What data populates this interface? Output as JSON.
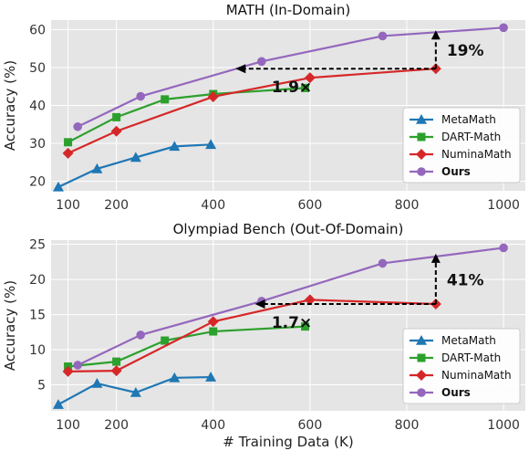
{
  "colors": {
    "MetaMath": "#1f77b4",
    "DART-Math": "#2ca02c",
    "NuminaMath": "#d62728",
    "Ours": "#9467bd"
  },
  "chart_data": [
    {
      "type": "line",
      "title": "MATH (In-Domain)",
      "xlabel": "",
      "ylabel": "Accuracy (%)",
      "xlim": [
        65,
        1045
      ],
      "ylim": [
        17.5,
        62.5
      ],
      "xticks": [
        100,
        200,
        400,
        600,
        800,
        1000
      ],
      "yticks": [
        20,
        30,
        40,
        50,
        60
      ],
      "grid": true,
      "legend_position": "lower-right",
      "series": [
        {
          "name": "MetaMath",
          "marker": "triangle",
          "x": [
            80,
            160,
            240,
            320,
            395
          ],
          "y": [
            18.5,
            23.3,
            26.3,
            29.2,
            29.7
          ]
        },
        {
          "name": "DART-Math",
          "marker": "square",
          "x": [
            100,
            200,
            300,
            400,
            590
          ],
          "y": [
            30.3,
            36.9,
            41.6,
            43.0,
            44.6
          ]
        },
        {
          "name": "NuminaMath",
          "marker": "diamond",
          "x": [
            100,
            200,
            400,
            600,
            860
          ],
          "y": [
            27.4,
            33.2,
            42.3,
            47.3,
            49.7
          ]
        },
        {
          "name": "Ours",
          "marker": "circle",
          "x": [
            120,
            250,
            500,
            750,
            1000
          ],
          "y": [
            34.4,
            42.4,
            51.6,
            58.3,
            60.5
          ]
        }
      ],
      "annotations": [
        {
          "text": "19%",
          "type": "vertical-arrow",
          "x": 860,
          "y_from": 49.7,
          "y_to": 59.3
        },
        {
          "text": "1.9×",
          "type": "horizontal-arrow",
          "y": 49.7,
          "x_from": 860,
          "x_to": 450
        }
      ]
    },
    {
      "type": "line",
      "title": "Olympiad Bench (Out-Of-Domain)",
      "xlabel": "# Training Data (K)",
      "ylabel": "Accuracy (%)",
      "xlim": [
        65,
        1045
      ],
      "ylim": [
        1.3,
        25.6
      ],
      "xticks": [
        100,
        200,
        400,
        600,
        800,
        1000
      ],
      "yticks": [
        5,
        10,
        15,
        20,
        25
      ],
      "grid": true,
      "legend_position": "lower-right",
      "series": [
        {
          "name": "MetaMath",
          "marker": "triangle",
          "x": [
            80,
            160,
            240,
            320,
            395
          ],
          "y": [
            2.2,
            5.2,
            3.9,
            6.0,
            6.1
          ]
        },
        {
          "name": "DART-Math",
          "marker": "square",
          "x": [
            100,
            200,
            300,
            400,
            590
          ],
          "y": [
            7.6,
            8.3,
            11.3,
            12.6,
            13.3
          ]
        },
        {
          "name": "NuminaMath",
          "marker": "diamond",
          "x": [
            100,
            200,
            400,
            600,
            860
          ],
          "y": [
            6.9,
            7.0,
            14.0,
            17.1,
            16.5
          ]
        },
        {
          "name": "Ours",
          "marker": "circle",
          "x": [
            120,
            250,
            500,
            750,
            1000
          ],
          "y": [
            7.8,
            12.1,
            16.9,
            22.3,
            24.5
          ]
        }
      ],
      "annotations": [
        {
          "text": "41%",
          "type": "vertical-arrow",
          "x": 860,
          "y_from": 16.5,
          "y_to": 23.4
        },
        {
          "text": "1.7×",
          "type": "horizontal-arrow",
          "y": 16.5,
          "x_from": 860,
          "x_to": 490
        }
      ]
    }
  ]
}
